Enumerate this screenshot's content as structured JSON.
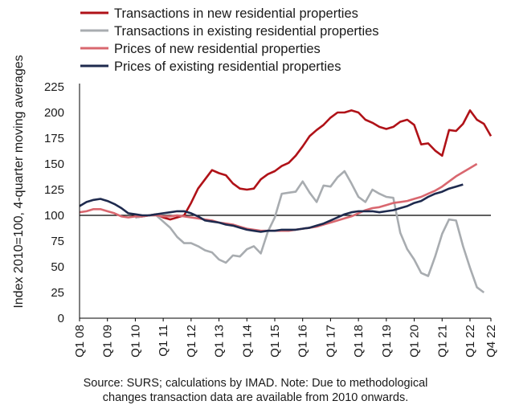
{
  "chart_data": {
    "type": "line",
    "ylabel": "Index 2010=100, 4-quarter moving averages",
    "ylim": [
      0,
      225
    ],
    "yticks": [
      0,
      25,
      50,
      75,
      100,
      125,
      150,
      175,
      200,
      225
    ],
    "reference_line": 100,
    "xtick_labels": [
      "Q1 08",
      "Q1 09",
      "Q1 10",
      "Q1 11",
      "Q1 12",
      "Q1 13",
      "Q1 14",
      "Q1 15",
      "Q1 16",
      "Q1 17",
      "Q1 18",
      "Q1 19",
      "Q1 20",
      "Q1 21",
      "Q1 22",
      "Q4 22"
    ],
    "x_start": "Q1 08",
    "x_end": "Q4 22",
    "legend_position": "top",
    "series": [
      {
        "name": "Transactions in new residential properties",
        "color": "#b01218",
        "start": "Q1 10",
        "values": [
          98,
          99,
          100,
          101,
          98,
          96,
          98,
          100,
          112,
          126,
          135,
          144,
          141,
          139,
          131,
          126,
          125,
          126,
          135,
          140,
          143,
          148,
          151,
          158,
          167,
          177,
          183,
          188,
          195,
          200,
          200,
          202,
          200,
          193,
          190,
          186,
          184,
          186,
          191,
          193,
          188,
          169,
          170,
          163,
          158,
          183,
          182,
          189,
          202,
          193,
          189,
          177
        ]
      },
      {
        "name": "Transactions in existing residential properties",
        "color": "#a8acb0",
        "start": "Q1 10",
        "values": [
          98,
          99,
          100,
          100,
          94,
          88,
          79,
          73,
          73,
          70,
          66,
          64,
          57,
          54,
          61,
          60,
          67,
          70,
          63,
          84,
          98,
          121,
          122,
          123,
          133,
          122,
          113,
          129,
          128,
          137,
          143,
          131,
          118,
          113,
          125,
          121,
          118,
          117,
          83,
          67,
          57,
          44,
          41,
          60,
          82,
          96,
          95,
          70,
          49,
          30,
          25
        ]
      },
      {
        "name": "Prices of new residential properties",
        "color": "#d9676f",
        "start": "Q1 08",
        "values": [
          103,
          104,
          106,
          106,
          104,
          102,
          99,
          98,
          99,
          99,
          100,
          100,
          99,
          99,
          100,
          99,
          98,
          97,
          96,
          95,
          93,
          92,
          91,
          89,
          87,
          86,
          85,
          85,
          85,
          85,
          85,
          86,
          87,
          88,
          89,
          91,
          93,
          95,
          97,
          99,
          102,
          105,
          107,
          108,
          110,
          112,
          113,
          114,
          116,
          118,
          121,
          124,
          128,
          133,
          138,
          142,
          146,
          150
        ]
      },
      {
        "name": "Prices of existing residential properties",
        "color": "#1e2a4e",
        "start": "Q1 08",
        "values": [
          109,
          113,
          115,
          116,
          114,
          111,
          107,
          102,
          101,
          100,
          100,
          101,
          102,
          103,
          104,
          104,
          102,
          99,
          95,
          94,
          93,
          91,
          90,
          88,
          86,
          85,
          84,
          85,
          85,
          86,
          86,
          86,
          87,
          88,
          90,
          92,
          95,
          98,
          101,
          103,
          104,
          104,
          104,
          103,
          104,
          105,
          107,
          109,
          112,
          114,
          118,
          121,
          123,
          126,
          128,
          130
        ]
      }
    ]
  },
  "note": {
    "line1": "Source: SURS; calculations by IMAD. Note: Due to methodological",
    "line2": "changes transaction data are available from 2010 onwards."
  }
}
